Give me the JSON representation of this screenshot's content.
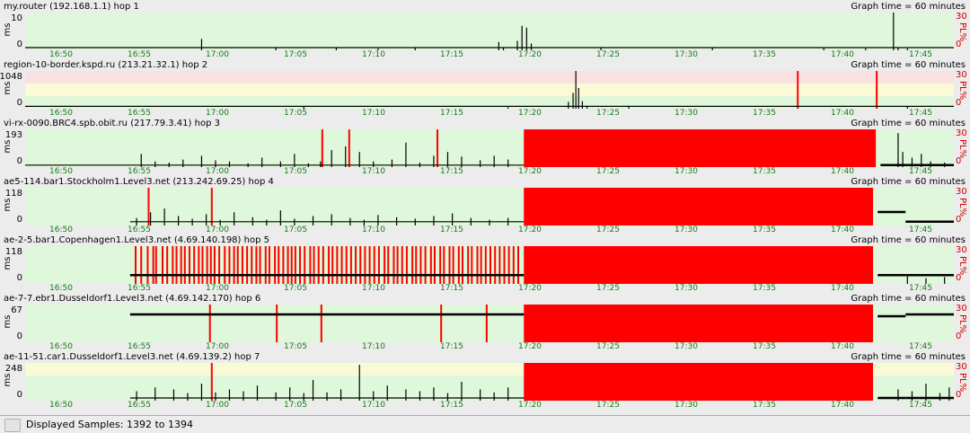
{
  "graph_time_label": "Graph time = 60 minutes",
  "y_unit": "ms",
  "pl_unit": "PL%",
  "pl_max": "30",
  "pl_min": "0",
  "time_ticks": [
    "16:50",
    "16:55",
    "17:00",
    "17:05",
    "17:10",
    "17:15",
    "17:20",
    "17:25",
    "17:30",
    "17:35",
    "17:40",
    "17:45"
  ],
  "status": {
    "text": "Displayed Samples: 1392 to 1394"
  },
  "colors": {
    "plot_bg_green": "#dff7da",
    "plot_bg_pink": "#f9e1e1",
    "plot_bg_yellow": "#fafbd6",
    "loss_red": "#ff0000",
    "tick_green": "#108010",
    "pl_red": "#d00000"
  },
  "hops": [
    {
      "title": "my.router (192.168.1.1) hop 1",
      "y_max": "10",
      "y_min": "0",
      "bands": [],
      "latency_baseline": 0.05,
      "trace_start": 0.0,
      "trace_end": 1.0,
      "spikes": [
        [
          0.19,
          0.3
        ],
        [
          0.27,
          0.06
        ],
        [
          0.335,
          0.06
        ],
        [
          0.38,
          0.05
        ],
        [
          0.42,
          0.08
        ],
        [
          0.51,
          0.22
        ],
        [
          0.515,
          0.08
        ],
        [
          0.53,
          0.25
        ],
        [
          0.535,
          0.65
        ],
        [
          0.54,
          0.6
        ],
        [
          0.545,
          0.18
        ],
        [
          0.62,
          0.08
        ],
        [
          0.74,
          0.07
        ],
        [
          0.86,
          0.06
        ],
        [
          0.905,
          0.05
        ],
        [
          0.935,
          1.0
        ],
        [
          0.94,
          0.06
        ],
        [
          0.95,
          0.05
        ]
      ],
      "loss_bars": [],
      "loss_blocks": []
    },
    {
      "title": "region-10-border.kspd.ru (213.21.32.1) hop 2",
      "y_max": "1048",
      "y_min": "0",
      "bands": [
        "pink",
        "yellow"
      ],
      "latency_baseline": 0.04,
      "trace_start": 0.0,
      "trace_end": 1.0,
      "spikes": [
        [
          0.3,
          0.05
        ],
        [
          0.52,
          0.04
        ],
        [
          0.585,
          0.18
        ],
        [
          0.59,
          0.42
        ],
        [
          0.593,
          1.0
        ],
        [
          0.596,
          0.55
        ],
        [
          0.6,
          0.2
        ],
        [
          0.605,
          0.08
        ],
        [
          0.65,
          0.05
        ],
        [
          0.95,
          0.05
        ]
      ],
      "loss_bars": [
        0.831,
        0.916
      ],
      "loss_blocks": []
    },
    {
      "title": "vi-rx-0090.BRC4.spb.obit.ru (217.79.3.41) hop 3",
      "y_max": "193",
      "y_min": "0",
      "bands": [],
      "latency_baseline": 0.03,
      "trace_start": 0.0,
      "trace_end": 1.0,
      "spikes": [
        [
          0.125,
          0.35
        ],
        [
          0.14,
          0.15
        ],
        [
          0.155,
          0.12
        ],
        [
          0.17,
          0.2
        ],
        [
          0.19,
          0.3
        ],
        [
          0.205,
          0.18
        ],
        [
          0.22,
          0.15
        ],
        [
          0.24,
          0.1
        ],
        [
          0.255,
          0.25
        ],
        [
          0.275,
          0.15
        ],
        [
          0.29,
          0.35
        ],
        [
          0.305,
          0.1
        ],
        [
          0.318,
          0.15
        ],
        [
          0.33,
          0.45
        ],
        [
          0.345,
          0.55
        ],
        [
          0.36,
          0.4
        ],
        [
          0.375,
          0.15
        ],
        [
          0.395,
          0.2
        ],
        [
          0.41,
          0.65
        ],
        [
          0.425,
          0.12
        ],
        [
          0.44,
          0.3
        ],
        [
          0.455,
          0.4
        ],
        [
          0.47,
          0.28
        ],
        [
          0.49,
          0.18
        ],
        [
          0.505,
          0.3
        ],
        [
          0.52,
          0.2
        ],
        [
          0.94,
          0.9
        ],
        [
          0.945,
          0.4
        ],
        [
          0.955,
          0.25
        ],
        [
          0.965,
          0.35
        ],
        [
          0.975,
          0.15
        ],
        [
          0.99,
          0.12
        ]
      ],
      "loss_bars": [
        0.319,
        0.348,
        0.443
      ],
      "loss_blocks": [
        [
          0.537,
          0.916
        ]
      ]
    },
    {
      "title": "ae5-114.bar1.Stockholm1.Level3.net (213.242.69.25) hop 4",
      "y_max": "118",
      "y_min": "0",
      "bands": [],
      "latency_baseline": 0.08,
      "trace_start": 0.113,
      "trace_end": 1.0,
      "spikes": [
        [
          0.12,
          0.2
        ],
        [
          0.135,
          0.35
        ],
        [
          0.15,
          0.45
        ],
        [
          0.165,
          0.25
        ],
        [
          0.18,
          0.18
        ],
        [
          0.195,
          0.3
        ],
        [
          0.21,
          0.15
        ],
        [
          0.225,
          0.35
        ],
        [
          0.245,
          0.22
        ],
        [
          0.26,
          0.15
        ],
        [
          0.275,
          0.4
        ],
        [
          0.29,
          0.18
        ],
        [
          0.31,
          0.25
        ],
        [
          0.33,
          0.3
        ],
        [
          0.35,
          0.2
        ],
        [
          0.365,
          0.15
        ],
        [
          0.38,
          0.28
        ],
        [
          0.4,
          0.22
        ],
        [
          0.42,
          0.18
        ],
        [
          0.44,
          0.25
        ],
        [
          0.46,
          0.32
        ],
        [
          0.48,
          0.2
        ],
        [
          0.5,
          0.15
        ],
        [
          0.52,
          0.2
        ]
      ],
      "loss_bars": [
        0.132,
        0.2
      ],
      "loss_blocks": [
        [
          0.537,
          0.913
        ]
      ],
      "after_step": 0.35
    },
    {
      "title": "ae-2-5.bar1.Copenhagen1.Level3.net (4.69.140.198) hop 5",
      "y_max": "118",
      "y_min": "0",
      "bands": [],
      "latency_baseline": 0.22,
      "trace_start": 0.113,
      "trace_end": 1.0,
      "spikes": [
        [
          0.95,
          0.2
        ],
        [
          0.97,
          0.15
        ],
        [
          0.99,
          0.18
        ]
      ],
      "loss_bars": [
        0.118,
        0.124,
        0.131,
        0.137,
        0.14,
        0.147,
        0.152,
        0.158,
        0.162,
        0.167,
        0.171,
        0.176,
        0.181,
        0.186,
        0.19,
        0.195,
        0.199,
        0.203,
        0.208,
        0.214,
        0.219,
        0.224,
        0.228,
        0.233,
        0.238,
        0.243,
        0.248,
        0.252,
        0.258,
        0.262,
        0.268,
        0.272,
        0.277,
        0.282,
        0.286,
        0.29,
        0.295,
        0.3,
        0.306,
        0.31,
        0.315,
        0.32,
        0.326,
        0.33,
        0.335,
        0.34,
        0.345,
        0.35,
        0.355,
        0.36,
        0.365,
        0.37,
        0.375,
        0.38,
        0.386,
        0.39,
        0.396,
        0.4,
        0.405,
        0.41,
        0.416,
        0.42,
        0.425,
        0.43,
        0.436,
        0.44,
        0.446,
        0.45,
        0.456,
        0.46,
        0.466,
        0.47,
        0.476,
        0.48,
        0.486,
        0.49,
        0.495,
        0.5,
        0.505,
        0.51,
        0.515,
        0.52,
        0.525,
        0.53
      ],
      "loss_blocks": [
        [
          0.537,
          0.913
        ]
      ]
    },
    {
      "title": "ae-7-7.ebr1.Dusseldorf1.Level3.net (4.69.142.170) hop 6",
      "y_max": "67",
      "y_min": "0",
      "bands": [],
      "latency_baseline": 0.75,
      "trace_start": 0.113,
      "trace_end": 1.0,
      "spikes": [],
      "loss_bars": [
        0.198,
        0.27,
        0.318,
        0.447,
        0.496
      ],
      "loss_blocks": [
        [
          0.537,
          0.913
        ]
      ],
      "after_step": 0.7
    },
    {
      "title": "ae-11-51.car1.Dusseldorf1.Level3.net (4.69.139.2) hop 7",
      "y_max": "248",
      "y_min": "0",
      "bands": [
        "yellow"
      ],
      "latency_baseline": 0.05,
      "trace_start": 0.113,
      "trace_end": 1.0,
      "spikes": [
        [
          0.12,
          0.25
        ],
        [
          0.14,
          0.35
        ],
        [
          0.16,
          0.3
        ],
        [
          0.175,
          0.2
        ],
        [
          0.19,
          0.45
        ],
        [
          0.205,
          0.22
        ],
        [
          0.22,
          0.3
        ],
        [
          0.235,
          0.25
        ],
        [
          0.25,
          0.4
        ],
        [
          0.27,
          0.22
        ],
        [
          0.285,
          0.35
        ],
        [
          0.3,
          0.2
        ],
        [
          0.31,
          0.55
        ],
        [
          0.325,
          0.22
        ],
        [
          0.34,
          0.3
        ],
        [
          0.36,
          0.95
        ],
        [
          0.375,
          0.25
        ],
        [
          0.39,
          0.4
        ],
        [
          0.41,
          0.3
        ],
        [
          0.425,
          0.25
        ],
        [
          0.44,
          0.35
        ],
        [
          0.455,
          0.2
        ],
        [
          0.47,
          0.5
        ],
        [
          0.49,
          0.3
        ],
        [
          0.505,
          0.22
        ],
        [
          0.52,
          0.35
        ],
        [
          0.94,
          0.3
        ],
        [
          0.955,
          0.25
        ],
        [
          0.97,
          0.45
        ],
        [
          0.985,
          0.2
        ],
        [
          0.995,
          0.35
        ]
      ],
      "loss_bars": [
        0.2
      ],
      "loss_blocks": [
        [
          0.537,
          0.913
        ]
      ]
    }
  ]
}
